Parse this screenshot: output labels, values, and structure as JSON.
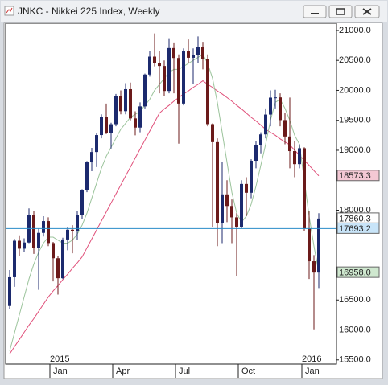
{
  "chart_data": {
    "type": "candlestick",
    "title": "JNKC - Nikkei 225 Index, Weekly",
    "open": [
      16400,
      16880,
      17490,
      17357,
      17460,
      17920,
      17371,
      17621,
      17818,
      17451,
      17198,
      16864,
      17511,
      17674,
      17648,
      17913,
      18332,
      18798,
      18971,
      19254,
      19560,
      19286,
      19435,
      19908,
      19653,
      20020,
      19532,
      19379,
      19733,
      20264,
      20563,
      20461,
      20407,
      19990,
      20706,
      20540,
      19780,
      20650,
      20544,
      20585,
      20724,
      20519,
      19436,
      19136,
      17792,
      18264,
      18070,
      17880,
      17725,
      18438,
      18291,
      18825,
      19083,
      19265,
      19596,
      19879,
      19883,
      19504,
      19230,
      18986,
      18769,
      19034,
      17698,
      17147,
      16958
    ],
    "high": [
      17000,
      17520,
      17580,
      17530,
      18030,
      17990,
      17690,
      17900,
      17880,
      17470,
      17240,
      17540,
      17720,
      17750,
      17980,
      18350,
      18820,
      19040,
      19290,
      19600,
      19780,
      19460,
      19940,
      20000,
      20120,
      20130,
      19650,
      19800,
      20280,
      20650,
      20950,
      20650,
      20500,
      20870,
      20800,
      20600,
      20700,
      20850,
      20700,
      20900,
      20810,
      20600,
      19450,
      19200,
      18800,
      18500,
      18180,
      17950,
      18500,
      18550,
      18850,
      19150,
      19300,
      19700,
      20000,
      20010,
      19950,
      19620,
      19880,
      19150,
      19100,
      19050,
      17990,
      17250,
      17950
    ],
    "low": [
      16350,
      16720,
      17230,
      17300,
      17450,
      17270,
      16670,
      17560,
      17400,
      16810,
      16590,
      16850,
      17330,
      17280,
      17500,
      17850,
      18300,
      18650,
      18720,
      19200,
      19270,
      19030,
      19400,
      19600,
      19600,
      19500,
      19250,
      19300,
      19700,
      20230,
      20400,
      19950,
      19900,
      19950,
      19950,
      19110,
      19750,
      20450,
      20100,
      20450,
      20350,
      19400,
      17720,
      17400,
      17450,
      17800,
      17450,
      16900,
      17700,
      17900,
      18200,
      18700,
      18950,
      19200,
      19400,
      19700,
      19400,
      19100,
      18700,
      18550,
      18700,
      17650,
      16850,
      16010,
      16700
    ],
    "close": [
      16880,
      17490,
      17357,
      17460,
      17920,
      17371,
      17621,
      17818,
      17451,
      17198,
      16864,
      17511,
      17674,
      17648,
      17913,
      18332,
      18798,
      18971,
      19254,
      19560,
      19286,
      19435,
      19908,
      19653,
      20020,
      19532,
      19379,
      19733,
      20264,
      20563,
      20461,
      20407,
      19990,
      20706,
      20540,
      19780,
      20650,
      20544,
      20585,
      20724,
      20519,
      19436,
      19136,
      17792,
      18264,
      18070,
      17880,
      17725,
      18438,
      18291,
      18825,
      19083,
      19265,
      19596,
      19879,
      19883,
      19504,
      19230,
      18986,
      18769,
      19034,
      17698,
      17147,
      16958,
      17860.3
    ],
    "up_color": "#1c2a6e",
    "down_color": "#6b1a1a",
    "series": [
      {
        "color": "#e0507a",
        "values": [
          15600,
          15720,
          15840,
          15960,
          16080,
          16190,
          16310,
          16430,
          16550,
          16650,
          16740,
          16840,
          16930,
          17030,
          17120,
          17220,
          17370,
          17520,
          17670,
          17820,
          17970,
          18120,
          18270,
          18420,
          18570,
          18720,
          18870,
          19020,
          19170,
          19320,
          19470,
          19620,
          19690,
          19750,
          19820,
          19880,
          19940,
          19990,
          20050,
          20100,
          20160,
          20100,
          20050,
          19990,
          19940,
          19880,
          19820,
          19750,
          19690,
          19620,
          19550,
          19490,
          19420,
          19350,
          19300,
          19250,
          19190,
          19140,
          19090,
          19000,
          18920,
          18830,
          18750,
          18660,
          18573.3
        ]
      },
      {
        "color": "#9cc49c",
        "values": [
          15650,
          15950,
          16250,
          16550,
          16850,
          17100,
          17300,
          17450,
          17550,
          17550,
          17500,
          17450,
          17450,
          17500,
          17600,
          17750,
          17950,
          18200,
          18450,
          18700,
          18900,
          19050,
          19200,
          19350,
          19450,
          19550,
          19600,
          19650,
          19750,
          19850,
          20000,
          20100,
          20200,
          20300,
          20350,
          20350,
          20400,
          20450,
          20500,
          20550,
          20600,
          20450,
          20200,
          19800,
          19300,
          18800,
          18300,
          17950,
          17800,
          17900,
          18100,
          18400,
          18750,
          19100,
          19500,
          19800,
          19850,
          19700,
          19500,
          19250,
          19100,
          18500,
          17900,
          17400,
          16958
        ]
      }
    ],
    "price_labels": [
      {
        "value": 18573.3,
        "color": "#f4c8d4"
      },
      {
        "value": 17860.3,
        "color": "#ffffff"
      },
      {
        "value": 17693.2,
        "color": "#c8e4f8"
      },
      {
        "value": 16958.0,
        "color": "#cfe8cf"
      }
    ],
    "price_line": 17693.2,
    "price_line_color": "#2a8cc8",
    "ylim": [
      15430,
      21120
    ],
    "yticks": [
      {
        "value": 21000,
        "label": "21000.0"
      },
      {
        "value": 20500,
        "label": "20500.0"
      },
      {
        "value": 20000,
        "label": "20000.0"
      },
      {
        "value": 19500,
        "label": "19500.0"
      },
      {
        "value": 19000,
        "label": "19000.0"
      },
      {
        "value": 18000,
        "label": "18000.0"
      },
      {
        "value": 16500,
        "label": "16500.0"
      },
      {
        "value": 16000,
        "label": "16000.0"
      },
      {
        "value": 15500,
        "label": "15500.0"
      }
    ],
    "x_labels": [
      "Jan",
      "Apr",
      "Jul",
      "Oct",
      "Jan"
    ],
    "year_labels": [
      "2015",
      "2016"
    ]
  }
}
